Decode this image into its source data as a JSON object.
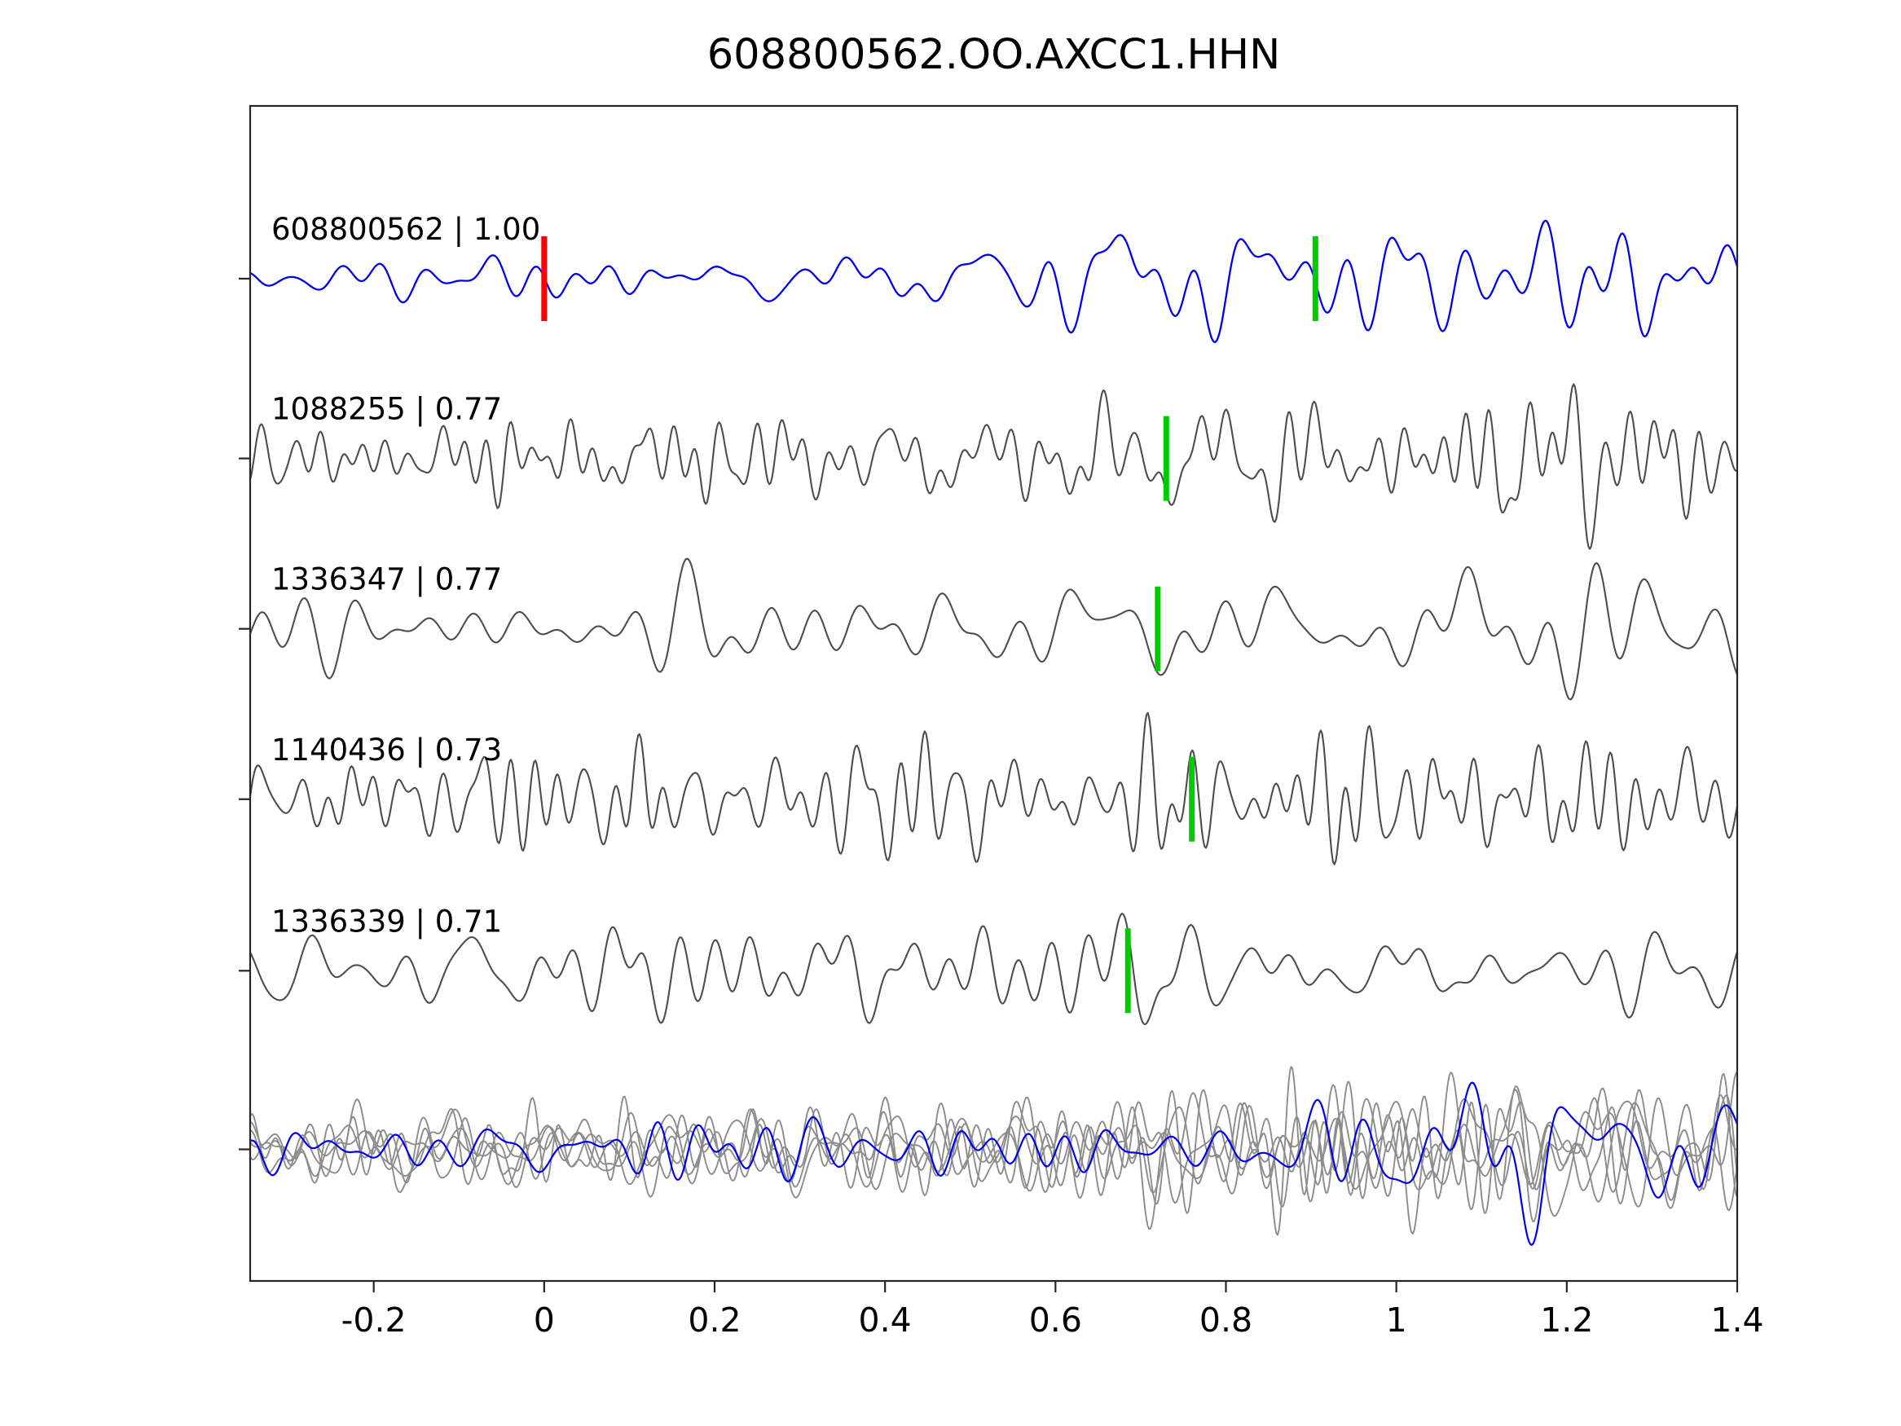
{
  "title": "608800562.OO.AXCC1.HHN",
  "chart_data": {
    "type": "line",
    "title": "608800562.OO.AXCC1.HHN",
    "xlabel": "",
    "ylabel": "",
    "xlim": [
      -0.345,
      1.4
    ],
    "grid": false,
    "legend": "none",
    "x_tick_values": [
      -0.2,
      0,
      0.2,
      0.4,
      0.6,
      0.8,
      1.0,
      1.2,
      1.4
    ],
    "x_tick_labels": [
      "-0.2",
      "0",
      "0.2",
      "0.4",
      "0.6",
      "0.8",
      "1",
      "1.2",
      "1.4"
    ],
    "colors": {
      "reference": "#0000ee",
      "match": "#4d4d4d",
      "overlay_gray": "#8c8c8c",
      "pick": "#00cc00",
      "origin": "#ff0000",
      "frame": "#262626"
    },
    "traces": [
      {
        "label": "608800562 | 1.00",
        "event_id": "608800562",
        "similarity": 1.0,
        "role": "reference",
        "markers": [
          {
            "x": 0.0,
            "type": "origin"
          },
          {
            "x": 0.905,
            "type": "pick"
          }
        ]
      },
      {
        "label": "1088255 | 0.77",
        "event_id": "1088255",
        "similarity": 0.77,
        "role": "match",
        "markers": [
          {
            "x": 0.73,
            "type": "pick"
          }
        ]
      },
      {
        "label": "1336347 | 0.77",
        "event_id": "1336347",
        "similarity": 0.77,
        "role": "match",
        "markers": [
          {
            "x": 0.72,
            "type": "pick"
          }
        ]
      },
      {
        "label": "1140436 | 0.73",
        "event_id": "1140436",
        "similarity": 0.73,
        "role": "match",
        "markers": [
          {
            "x": 0.76,
            "type": "pick"
          }
        ]
      },
      {
        "label": "1336339 | 0.71",
        "event_id": "1336339",
        "similarity": 0.71,
        "role": "match",
        "markers": [
          {
            "x": 0.685,
            "type": "pick"
          }
        ]
      }
    ],
    "overlay_row": {
      "description": "all matched waveforms overlaid in gray with reference waveform in blue",
      "gray_trace_count": 5,
      "blue_trace_count": 1,
      "markers": []
    }
  }
}
